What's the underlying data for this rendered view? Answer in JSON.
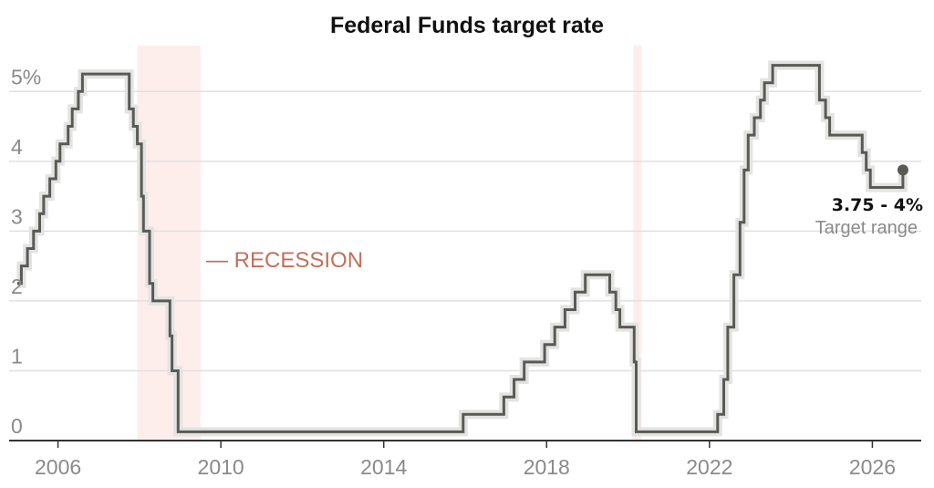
{
  "chart_data": {
    "type": "line",
    "title": "Federal Funds target rate",
    "xlabel": "",
    "ylabel": "",
    "xlim": [
      2004.8,
      2027.2
    ],
    "ylim": [
      0,
      5.5
    ],
    "y_ticks": [
      {
        "value": 0,
        "label": "0"
      },
      {
        "value": 1,
        "label": "1"
      },
      {
        "value": 2,
        "label": "2"
      },
      {
        "value": 3,
        "label": "3"
      },
      {
        "value": 4,
        "label": "4"
      },
      {
        "value": 5,
        "label": "5%"
      }
    ],
    "x_ticks": [
      {
        "value": 2006,
        "label": "2006"
      },
      {
        "value": 2010,
        "label": "2010"
      },
      {
        "value": 2014,
        "label": "2014"
      },
      {
        "value": 2018,
        "label": "2018"
      },
      {
        "value": 2022,
        "label": "2022"
      },
      {
        "value": 2026,
        "label": "2026"
      }
    ],
    "grid": true,
    "recessions": [
      {
        "start": 2007.95,
        "end": 2009.5
      },
      {
        "start": 2020.13,
        "end": 2020.33
      }
    ],
    "recession_label": "— RECESSION",
    "series": [
      {
        "color": "#5a5a55",
        "step": true,
        "points": [
          [
            2005.0,
            2.25
          ],
          [
            2005.1,
            2.5
          ],
          [
            2005.25,
            2.75
          ],
          [
            2005.4,
            3.0
          ],
          [
            2005.55,
            3.25
          ],
          [
            2005.65,
            3.5
          ],
          [
            2005.8,
            3.75
          ],
          [
            2005.95,
            4.0
          ],
          [
            2006.05,
            4.25
          ],
          [
            2006.25,
            4.5
          ],
          [
            2006.35,
            4.75
          ],
          [
            2006.5,
            5.0
          ],
          [
            2006.6,
            5.25
          ],
          [
            2007.75,
            4.75
          ],
          [
            2007.85,
            4.5
          ],
          [
            2007.95,
            4.25
          ],
          [
            2008.05,
            3.5
          ],
          [
            2008.1,
            3.0
          ],
          [
            2008.25,
            2.25
          ],
          [
            2008.33,
            2.0
          ],
          [
            2008.75,
            1.5
          ],
          [
            2008.8,
            1.0
          ],
          [
            2008.95,
            0.125
          ],
          [
            2015.95,
            0.375
          ],
          [
            2016.95,
            0.625
          ],
          [
            2017.2,
            0.875
          ],
          [
            2017.45,
            1.125
          ],
          [
            2017.95,
            1.375
          ],
          [
            2018.2,
            1.625
          ],
          [
            2018.45,
            1.875
          ],
          [
            2018.7,
            2.125
          ],
          [
            2018.95,
            2.375
          ],
          [
            2019.55,
            2.125
          ],
          [
            2019.7,
            1.875
          ],
          [
            2019.8,
            1.625
          ],
          [
            2020.15,
            1.125
          ],
          [
            2020.2,
            0.125
          ],
          [
            2022.2,
            0.375
          ],
          [
            2022.35,
            0.875
          ],
          [
            2022.45,
            1.625
          ],
          [
            2022.6,
            2.375
          ],
          [
            2022.75,
            3.125
          ],
          [
            2022.85,
            3.875
          ],
          [
            2022.95,
            4.375
          ],
          [
            2023.1,
            4.625
          ],
          [
            2023.25,
            4.875
          ],
          [
            2023.35,
            5.125
          ],
          [
            2023.55,
            5.375
          ],
          [
            2024.7,
            4.875
          ],
          [
            2024.85,
            4.625
          ],
          [
            2024.95,
            4.375
          ],
          [
            2025.75,
            4.125
          ],
          [
            2025.85,
            3.875
          ],
          [
            2025.95,
            3.625
          ],
          [
            2026.75,
            3.875
          ]
        ]
      }
    ],
    "end_marker": {
      "x": 2026.75,
      "y": 3.875
    },
    "annotation": {
      "value": "3.75 - 4%",
      "label": "Target range"
    }
  },
  "colors": {
    "line": "#5a5a55",
    "range_band": "#e3e3e3",
    "recession": "#fdeeec",
    "grid": "#e0e0e0",
    "axis": "#333333",
    "tick_text": "#8a8a8a",
    "recession_text": "#c0705a"
  }
}
